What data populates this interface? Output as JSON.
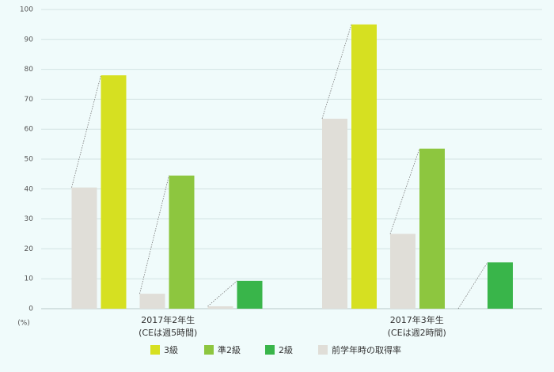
{
  "chart_data": {
    "type": "paired-bar",
    "unit_label": "(%)",
    "categories": [
      [
        "2017年2年生",
        "(CEは週5時間)"
      ],
      [
        "2017年3年生",
        "(CEは週2時間)"
      ]
    ],
    "series": [
      {
        "name": "3級",
        "color": "#d6e021",
        "values": [
          78,
          95
        ],
        "previous": [
          40.5,
          63.5
        ]
      },
      {
        "name": "準2級",
        "color": "#8dc63f",
        "values": [
          44.5,
          53.5
        ],
        "previous": [
          5,
          25
        ]
      },
      {
        "name": "2級",
        "color": "#39b54a",
        "values": [
          9.3,
          15.5
        ],
        "previous": [
          0.8,
          0
        ]
      }
    ],
    "previous_series": {
      "name": "前学年時の取得率",
      "color": "#e0ded8"
    },
    "ylim": [
      0,
      100
    ],
    "yticks": [
      0,
      10,
      20,
      30,
      40,
      50,
      60,
      70,
      80,
      90,
      100
    ],
    "grid": true
  }
}
